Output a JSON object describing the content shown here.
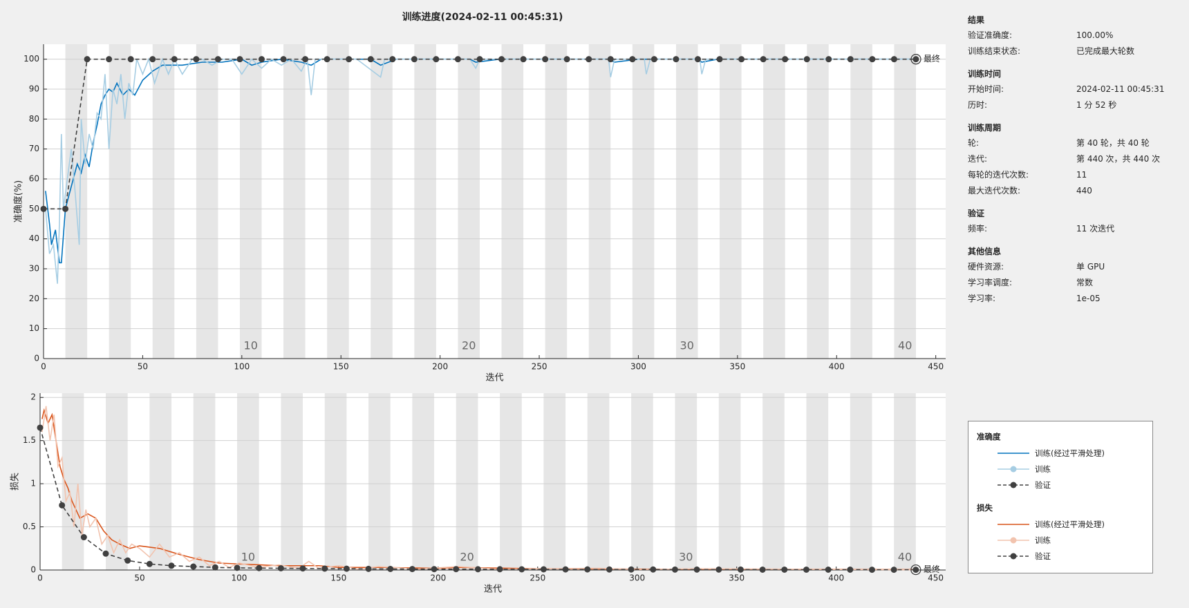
{
  "title": "训练进度(2024-02-11 00:45:31)",
  "final_label": "最终",
  "chart_data": [
    {
      "type": "line",
      "ylabel": "准确度(%)",
      "xlabel": "迭代",
      "legend_title": "准确度",
      "xlim": [
        0,
        455
      ],
      "xticks": [
        0,
        50,
        100,
        150,
        200,
        250,
        300,
        350,
        400,
        450
      ],
      "ylim": [
        0,
        105
      ],
      "yticks": [
        0,
        10,
        20,
        30,
        40,
        50,
        60,
        70,
        80,
        90,
        100
      ],
      "grid": true,
      "epoch_labels": [
        10,
        20,
        30,
        40
      ],
      "series": [
        {
          "name": "训练(经过平滑处理)",
          "color": "#0072bd",
          "style": "solid",
          "markers": false,
          "x": [
            1,
            3,
            4,
            6,
            8,
            9,
            11,
            13,
            15,
            17,
            19,
            21,
            23,
            25,
            27,
            29,
            31,
            33,
            35,
            37,
            40,
            43,
            46,
            50,
            55,
            60,
            70,
            80,
            90,
            100,
            105,
            110,
            120,
            130,
            135,
            140,
            150,
            165,
            170,
            178,
            200,
            215,
            218,
            230,
            285,
            288,
            300,
            330,
            332,
            340,
            440
          ],
          "values": [
            56,
            45,
            38,
            43,
            32,
            32,
            50,
            55,
            60,
            65,
            62,
            68,
            64,
            72,
            78,
            85,
            88,
            90,
            89,
            92,
            88,
            90,
            88,
            93,
            96,
            98,
            98,
            99,
            99,
            100,
            98,
            99,
            100,
            99,
            98,
            100,
            100,
            100,
            98,
            100,
            100,
            100,
            99,
            100,
            100,
            99,
            100,
            100,
            99,
            100,
            100
          ]
        },
        {
          "name": "训练",
          "color": "#a6cde3",
          "style": "solid",
          "markers": false,
          "x": [
            1,
            3,
            5,
            7,
            8,
            9,
            10,
            12,
            14,
            16,
            18,
            19,
            21,
            23,
            25,
            27,
            29,
            31,
            33,
            35,
            37,
            39,
            41,
            43,
            45,
            47,
            50,
            53,
            56,
            60,
            63,
            66,
            70,
            75,
            80,
            85,
            90,
            95,
            100,
            105,
            110,
            115,
            120,
            125,
            130,
            133,
            135,
            137,
            140,
            155,
            158,
            170,
            172,
            215,
            218,
            220,
            285,
            286,
            288,
            303,
            304,
            306,
            331,
            332,
            334,
            440
          ],
          "values": [
            50,
            35,
            38,
            25,
            45,
            75,
            50,
            60,
            70,
            55,
            38,
            80,
            65,
            75,
            70,
            82,
            80,
            95,
            70,
            90,
            85,
            95,
            80,
            92,
            88,
            100,
            95,
            100,
            92,
            100,
            95,
            100,
            95,
            100,
            100,
            98,
            100,
            100,
            95,
            100,
            97,
            100,
            98,
            100,
            96,
            100,
            88,
            100,
            100,
            100,
            100,
            94,
            100,
            100,
            97,
            100,
            100,
            94,
            100,
            100,
            95,
            100,
            100,
            95,
            100,
            100
          ]
        },
        {
          "name": "验证",
          "color": "#404040",
          "style": "dashed",
          "markers": true,
          "x": [
            0,
            11,
            22,
            33,
            44,
            55,
            66,
            77,
            88,
            99,
            110,
            121,
            132,
            143,
            154,
            165,
            176,
            187,
            198,
            209,
            220,
            231,
            242,
            253,
            264,
            275,
            286,
            297,
            308,
            319,
            330,
            341,
            352,
            363,
            374,
            385,
            396,
            407,
            418,
            429,
            440
          ],
          "values": [
            50,
            50,
            100,
            100,
            100,
            100,
            100,
            100,
            100,
            100,
            100,
            100,
            100,
            100,
            100,
            100,
            100,
            100,
            100,
            100,
            100,
            100,
            100,
            100,
            100,
            100,
            100,
            100,
            100,
            100,
            100,
            100,
            100,
            100,
            100,
            100,
            100,
            100,
            100,
            100,
            100
          ]
        }
      ]
    },
    {
      "type": "line",
      "ylabel": "损失",
      "xlabel": "迭代",
      "legend_title": "损失",
      "xlim": [
        0,
        455
      ],
      "xticks": [
        0,
        50,
        100,
        150,
        200,
        250,
        300,
        350,
        400,
        450
      ],
      "ylim": [
        0,
        2.05
      ],
      "yticks": [
        0,
        0.5,
        1,
        1.5,
        2
      ],
      "grid": true,
      "epoch_labels": [
        10,
        20,
        30,
        40
      ],
      "series": [
        {
          "name": "训练(经过平滑处理)",
          "color": "#d95319",
          "style": "solid",
          "markers": false,
          "x": [
            1,
            2,
            4,
            6,
            8,
            10,
            12,
            14,
            16,
            18,
            20,
            24,
            28,
            32,
            36,
            40,
            45,
            50,
            60,
            70,
            80,
            90,
            100,
            120,
            140,
            150,
            170,
            200,
            210,
            250,
            300,
            350,
            400,
            440
          ],
          "values": [
            1.75,
            1.85,
            1.7,
            1.8,
            1.5,
            1.2,
            1.05,
            0.95,
            0.8,
            0.7,
            0.6,
            0.65,
            0.6,
            0.45,
            0.35,
            0.3,
            0.25,
            0.28,
            0.25,
            0.18,
            0.12,
            0.08,
            0.07,
            0.05,
            0.05,
            0.03,
            0.03,
            0.02,
            0.03,
            0.015,
            0.01,
            0.01,
            0.008,
            0.005
          ]
        },
        {
          "name": "训练",
          "color": "#f2c3ae",
          "style": "solid",
          "markers": false,
          "x": [
            1,
            3,
            5,
            7,
            9,
            11,
            13,
            15,
            17,
            19,
            21,
            23,
            25,
            28,
            31,
            34,
            37,
            40,
            43,
            46,
            50,
            55,
            60,
            65,
            70,
            75,
            80,
            85,
            90,
            95,
            100,
            110,
            120,
            130,
            135,
            140,
            150,
            160,
            170,
            190,
            210,
            230,
            280,
            300,
            330,
            440
          ],
          "values": [
            1.6,
            1.9,
            1.5,
            1.8,
            1.2,
            1.3,
            0.8,
            0.9,
            0.5,
            1.0,
            0.4,
            0.7,
            0.5,
            0.6,
            0.3,
            0.4,
            0.2,
            0.35,
            0.2,
            0.3,
            0.25,
            0.15,
            0.3,
            0.15,
            0.2,
            0.1,
            0.15,
            0.05,
            0.1,
            0.03,
            0.08,
            0.03,
            0.06,
            0.02,
            0.1,
            0.02,
            0.05,
            0.01,
            0.04,
            0.01,
            0.04,
            0.01,
            0.02,
            0.005,
            0.015,
            0.002
          ]
        },
        {
          "name": "验证",
          "color": "#404040",
          "style": "dashed",
          "markers": true,
          "x": [
            0,
            11,
            22,
            33,
            44,
            55,
            66,
            77,
            88,
            99,
            110,
            121,
            132,
            143,
            154,
            165,
            176,
            187,
            198,
            209,
            220,
            231,
            242,
            253,
            264,
            275,
            286,
            297,
            308,
            319,
            330,
            341,
            352,
            363,
            374,
            385,
            396,
            407,
            418,
            429,
            440
          ],
          "values": [
            1.65,
            0.75,
            0.38,
            0.19,
            0.11,
            0.07,
            0.05,
            0.04,
            0.03,
            0.025,
            0.022,
            0.02,
            0.018,
            0.016,
            0.015,
            0.013,
            0.012,
            0.011,
            0.01,
            0.01,
            0.009,
            0.009,
            0.008,
            0.008,
            0.007,
            0.007,
            0.006,
            0.006,
            0.006,
            0.005,
            0.005,
            0.005,
            0.005,
            0.004,
            0.004,
            0.004,
            0.004,
            0.004,
            0.003,
            0.003,
            0.003
          ]
        }
      ]
    }
  ],
  "info": {
    "sections": [
      {
        "header": "结果",
        "rows": [
          {
            "label": "验证准确度:",
            "value": "100.00%"
          },
          {
            "label": "训练结束状态:",
            "value": "已完成最大轮数"
          }
        ]
      },
      {
        "header": "训练时间",
        "rows": [
          {
            "label": "开始时间:",
            "value": "2024-02-11 00:45:31"
          },
          {
            "label": "历时:",
            "value": "1 分 52 秒"
          }
        ]
      },
      {
        "header": "训练周期",
        "rows": [
          {
            "label": "轮:",
            "value": "第 40 轮，共 40 轮"
          },
          {
            "label": "迭代:",
            "value": "第 440 次，共 440 次"
          },
          {
            "label": "每轮的迭代次数:",
            "value": "11"
          },
          {
            "label": "最大迭代次数:",
            "value": "440"
          }
        ]
      },
      {
        "header": "验证",
        "rows": [
          {
            "label": "频率:",
            "value": "11 次迭代"
          }
        ]
      },
      {
        "header": "其他信息",
        "rows": [
          {
            "label": "硬件资源:",
            "value": "单 GPU"
          },
          {
            "label": "学习率调度:",
            "value": "常数"
          },
          {
            "label": "学习率:",
            "value": "1e-05"
          }
        ]
      }
    ]
  }
}
